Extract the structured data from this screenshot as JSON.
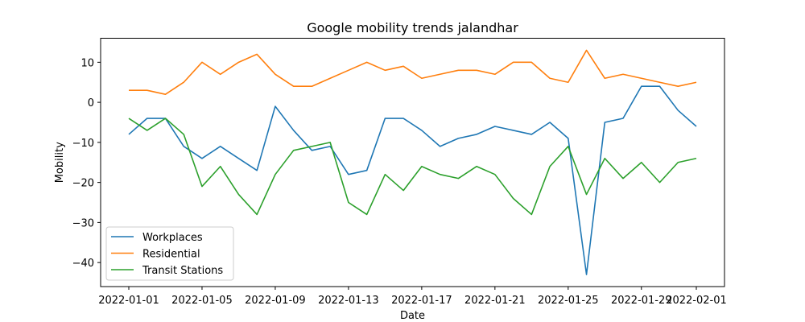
{
  "chart_data": {
    "type": "line",
    "title": "Google mobility trends jalandhar",
    "xlabel": "Date",
    "ylabel": "Mobility",
    "x": [
      "2022-01-01",
      "2022-01-02",
      "2022-01-03",
      "2022-01-04",
      "2022-01-05",
      "2022-01-06",
      "2022-01-07",
      "2022-01-08",
      "2022-01-09",
      "2022-01-10",
      "2022-01-11",
      "2022-01-12",
      "2022-01-13",
      "2022-01-14",
      "2022-01-15",
      "2022-01-16",
      "2022-01-17",
      "2022-01-18",
      "2022-01-19",
      "2022-01-20",
      "2022-01-21",
      "2022-01-22",
      "2022-01-23",
      "2022-01-24",
      "2022-01-25",
      "2022-01-26",
      "2022-01-27",
      "2022-01-28",
      "2022-01-29",
      "2022-01-30",
      "2022-01-31",
      "2022-02-01"
    ],
    "x_ticks": [
      "2022-01-01",
      "2022-01-05",
      "2022-01-09",
      "2022-01-13",
      "2022-01-17",
      "2022-01-21",
      "2022-01-25",
      "2022-01-29",
      "2022-02-01"
    ],
    "y_ticks": [
      10,
      0,
      -10,
      -20,
      -30,
      -40
    ],
    "ylim": [
      -46,
      16
    ],
    "grid": false,
    "legend_position": "lower-left",
    "series": [
      {
        "name": "Workplaces",
        "color": "#1f77b4",
        "values": [
          -8,
          -4,
          -4,
          -11,
          -14,
          -11,
          -14,
          -17,
          -1,
          -7,
          -12,
          -11,
          -18,
          -17,
          -4,
          -4,
          -7,
          -11,
          -9,
          -8,
          -6,
          -7,
          -8,
          -5,
          -9,
          -43,
          -5,
          -4,
          4,
          4,
          -2,
          -6
        ]
      },
      {
        "name": "Residential",
        "color": "#ff7f0e",
        "values": [
          3,
          3,
          2,
          5,
          10,
          7,
          10,
          12,
          7,
          4,
          4,
          6,
          8,
          10,
          8,
          9,
          6,
          7,
          8,
          8,
          7,
          10,
          10,
          6,
          5,
          13,
          6,
          7,
          6,
          5,
          4,
          5
        ]
      },
      {
        "name": "Transit Stations",
        "color": "#2ca02c",
        "values": [
          -4,
          -7,
          -4,
          -8,
          -21,
          -16,
          -23,
          -28,
          -18,
          -12,
          -11,
          -10,
          -25,
          -28,
          -18,
          -22,
          -16,
          -18,
          -19,
          -16,
          -18,
          -24,
          -28,
          -16,
          -11,
          -23,
          -14,
          -19,
          -15,
          -20,
          -15,
          -14
        ]
      }
    ]
  }
}
